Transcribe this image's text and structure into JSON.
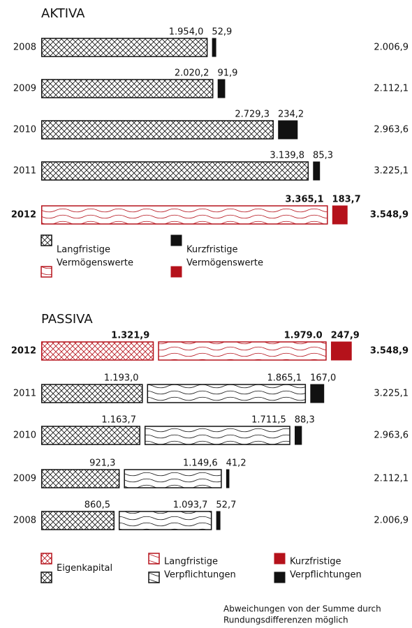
{
  "chart_data": [
    {
      "type": "bar",
      "orientation": "horizontal",
      "stacked": true,
      "title": "AKTIVA",
      "highlight": "2012",
      "highlight_color": "#b5121b",
      "categories": [
        "2008",
        "2009",
        "2010",
        "2011",
        "2012"
      ],
      "series": [
        {
          "name": "Langfristige Vermögenswerte",
          "color": "#111111",
          "pattern": "cross",
          "highlight_pattern": "wave",
          "values": [
            1954.0,
            2020.2,
            2729.3,
            3139.8,
            3365.1
          ],
          "value_labels": [
            "1.954,0",
            "2.020,2",
            "2.729,3",
            "3.139,8",
            "3.365,1"
          ]
        },
        {
          "name": "Kurzfristige Vermögenswerte",
          "color": "#111111",
          "pattern": "solid",
          "highlight_pattern": "solid",
          "values": [
            52.9,
            91.9,
            234.2,
            85.3,
            183.7
          ],
          "value_labels": [
            "52,9",
            "91,9",
            "234,2",
            "85,3",
            "183,7"
          ]
        }
      ],
      "totals": {
        "values": [
          2006.9,
          2112.1,
          2963.6,
          3225.1,
          3548.9
        ],
        "value_labels": [
          "2.006,9",
          "2.112,1",
          "2.963,6",
          "3.225,1",
          "3.548,9"
        ]
      }
    },
    {
      "type": "bar",
      "orientation": "horizontal",
      "stacked": true,
      "title": "PASSIVA",
      "highlight": "2012",
      "highlight_color": "#b5121b",
      "categories": [
        "2012",
        "2011",
        "2010",
        "2009",
        "2008"
      ],
      "series": [
        {
          "name": "Eigenkapital",
          "color": "#111111",
          "pattern": "cross",
          "highlight_pattern": "cross",
          "values": [
            1321.9,
            1193.0,
            1163.7,
            921.3,
            860.5
          ],
          "value_labels": [
            "1.321,9",
            "1.193,0",
            "1.163,7",
            "921,3",
            "860,5"
          ]
        },
        {
          "name": "Langfristige Verpflichtungen",
          "color": "#111111",
          "pattern": "wave",
          "highlight_pattern": "wave",
          "values": [
            1979.0,
            1865.1,
            1711.5,
            1149.6,
            1093.7
          ],
          "value_labels": [
            "1.979.0",
            "1.865,1",
            "1.711,5",
            "1.149,6",
            "1.093,7"
          ]
        },
        {
          "name": "Kurzfristige Verpflichtungen",
          "color": "#111111",
          "pattern": "solid",
          "highlight_pattern": "solid",
          "values": [
            247.9,
            167.0,
            88.3,
            41.2,
            52.7
          ],
          "value_labels": [
            "247,9",
            "167,0",
            "88,3",
            "41,2",
            "52,7"
          ]
        }
      ],
      "totals": {
        "values": [
          3548.9,
          3225.1,
          2963.6,
          2112.1,
          2006.9
        ],
        "value_labels": [
          "3.548,9",
          "3.225,1",
          "2.963,6",
          "2.112,1",
          "2.006,9"
        ]
      }
    }
  ],
  "note": [
    "Abweichungen von der Summe durch",
    "Rundungsdifferenzen möglich"
  ]
}
